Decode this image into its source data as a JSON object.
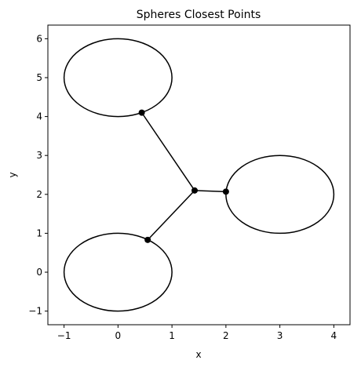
{
  "chart_data": {
    "type": "line",
    "title": "Spheres Closest Points",
    "xlabel": "x",
    "ylabel": "y",
    "xlim": [
      -1.3,
      4.3
    ],
    "ylim": [
      -1.35,
      6.35
    ],
    "xticks": [
      -1,
      0,
      1,
      2,
      3,
      4
    ],
    "yticks": [
      -1,
      0,
      1,
      2,
      3,
      4,
      5,
      6
    ],
    "grid": false,
    "legend": "none",
    "colors": {
      "line": "#000000",
      "background": "#ffffff"
    },
    "circles": [
      {
        "center": [
          0,
          5
        ],
        "radius": 1
      },
      {
        "center": [
          3,
          2
        ],
        "radius": 1
      },
      {
        "center": [
          0,
          0
        ],
        "radius": 1
      }
    ],
    "hub": [
      1.42,
      2.1
    ],
    "closest_points": [
      [
        0.44,
        4.1
      ],
      [
        2.0,
        2.07
      ],
      [
        0.55,
        0.83
      ]
    ]
  }
}
